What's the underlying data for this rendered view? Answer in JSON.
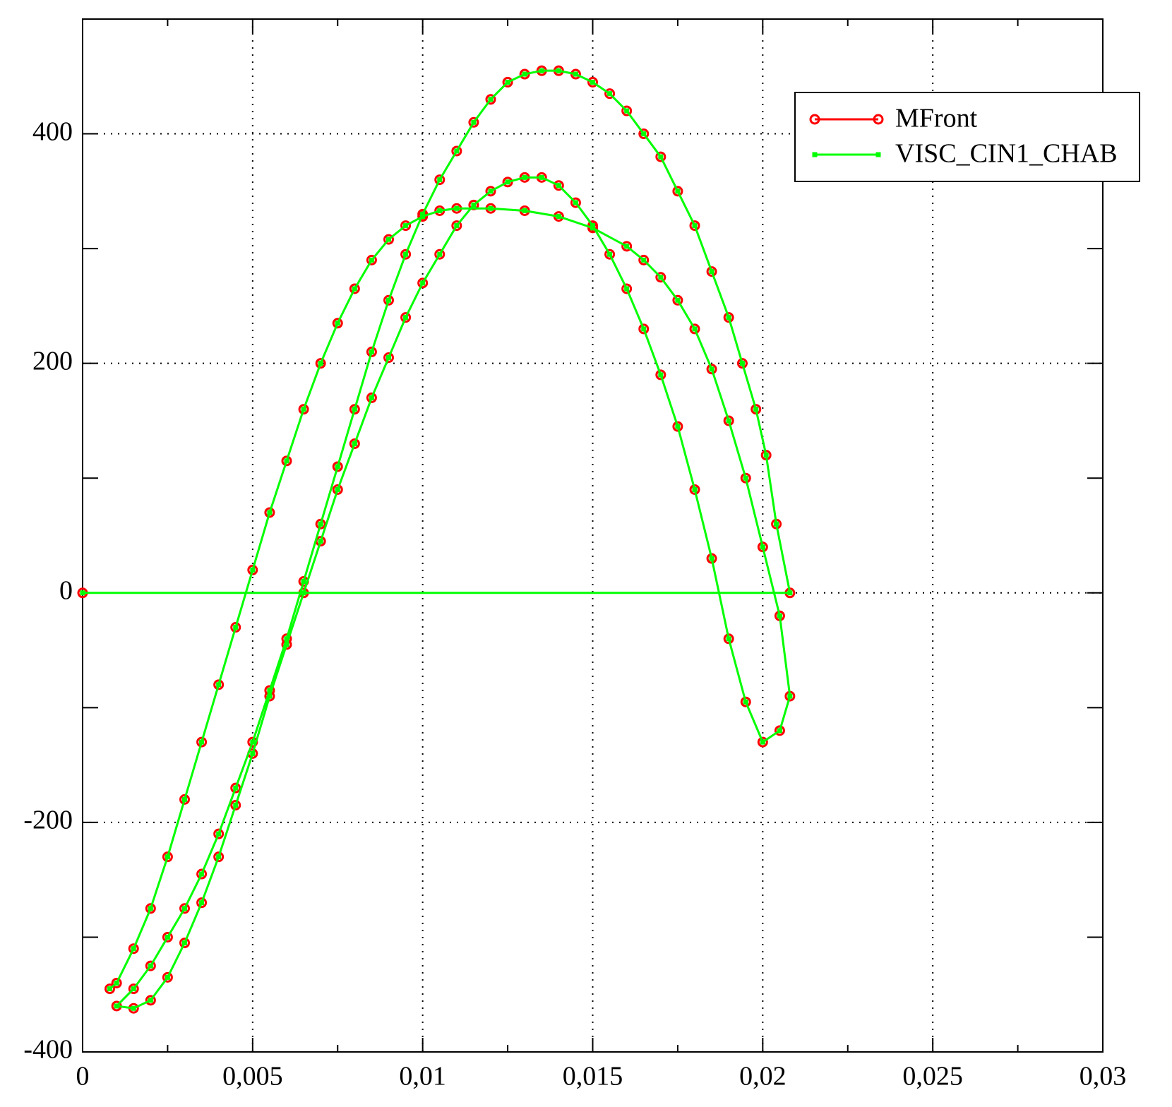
{
  "chart_data": {
    "type": "line",
    "xlim": [
      0,
      0.03
    ],
    "xticks": [
      0,
      {
        "value": 0.005,
        "label": "0,005"
      },
      {
        "value": 0.01,
        "label": "0,01"
      },
      {
        "value": 0.015,
        "label": "0,015"
      },
      {
        "value": 0.02,
        "label": "0,02"
      },
      {
        "value": 0.025,
        "label": "0,025"
      },
      {
        "value": 0.03,
        "label": "0,03"
      }
    ],
    "x_minor_ticks": [
      0.0025,
      0.0075,
      0.0125,
      0.0175,
      0.0225,
      0.0275
    ],
    "ylim": [
      -400,
      500
    ],
    "yticks": [
      -400,
      -200,
      0,
      200,
      400
    ],
    "y_minor_ticks": [
      -300,
      -100,
      100,
      300
    ],
    "grid": true,
    "legend": "upper right",
    "x": [
      0,
      0.0208,
      0.0204,
      0.0201,
      0.0198,
      0.0194,
      0.019,
      0.0185,
      0.018,
      0.0175,
      0.017,
      0.0165,
      0.016,
      0.0155,
      0.015,
      0.0145,
      0.014,
      0.0135,
      0.013,
      0.0125,
      0.012,
      0.0115,
      0.011,
      0.0105,
      0.01,
      0.0095,
      0.009,
      0.0085,
      0.008,
      0.0075,
      0.007,
      0.0065,
      0.006,
      0.0055,
      0.005,
      0.0045,
      0.004,
      0.0035,
      0.003,
      0.0025,
      0.002,
      0.0015,
      0.001,
      0.0015,
      0.002,
      0.0025,
      0.003,
      0.0035,
      0.004,
      0.0045,
      0.005,
      0.0055,
      0.006,
      0.0065,
      0.007,
      0.0075,
      0.008,
      0.0085,
      0.009,
      0.0095,
      0.01,
      0.0105,
      0.011,
      0.0115,
      0.012,
      0.0125,
      0.013,
      0.0135,
      0.014,
      0.0145,
      0.015,
      0.0155,
      0.016,
      0.0165,
      0.017,
      0.0175,
      0.018,
      0.0185,
      0.019,
      0.0195,
      0.02,
      0.0205,
      0.0208,
      0.0205,
      0.02,
      0.0195,
      0.019,
      0.0185,
      0.018,
      0.0175,
      0.017,
      0.0165,
      0.016,
      0.015,
      0.014,
      0.013,
      0.012,
      0.011,
      0.0105,
      0.01,
      0.0095,
      0.009,
      0.0085,
      0.008,
      0.0075,
      0.007,
      0.0065,
      0.006,
      0.0055,
      0.005,
      0.0045,
      0.004,
      0.0035,
      0.003,
      0.0025,
      0.002,
      0.0015,
      0.001,
      0.0008
    ],
    "series": [
      {
        "name": "MFront",
        "color": "#ff0000",
        "marker": "circle",
        "values": [
          0,
          0,
          60,
          120,
          160,
          200,
          240,
          280,
          320,
          350,
          380,
          400,
          420,
          435,
          445,
          452,
          455,
          455,
          452,
          445,
          430,
          410,
          385,
          360,
          330,
          295,
          255,
          210,
          160,
          110,
          60,
          10,
          -40,
          -85,
          -130,
          -170,
          -210,
          -245,
          -275,
          -300,
          -325,
          -345,
          -360,
          -362,
          -355,
          -335,
          -305,
          -270,
          -230,
          -185,
          -140,
          -90,
          -45,
          0,
          45,
          90,
          130,
          170,
          205,
          240,
          270,
          295,
          320,
          338,
          350,
          358,
          362,
          362,
          355,
          340,
          320,
          295,
          265,
          230,
          190,
          145,
          90,
          30,
          -40,
          -95,
          -130,
          -120,
          -90,
          -20,
          40,
          100,
          150,
          195,
          230,
          255,
          275,
          290,
          302,
          318,
          328,
          333,
          335,
          335,
          333,
          328,
          320,
          308,
          290,
          265,
          235,
          200,
          160,
          115,
          70,
          20,
          -30,
          -80,
          -130,
          -180,
          -230,
          -275,
          -310,
          -340,
          -345
        ]
      },
      {
        "name": "VISC_CIN1_CHAB",
        "color": "#00ff00",
        "marker": "square",
        "values": [
          0,
          0,
          60,
          120,
          160,
          200,
          240,
          280,
          320,
          350,
          380,
          400,
          420,
          435,
          445,
          452,
          455,
          455,
          452,
          445,
          430,
          410,
          385,
          360,
          330,
          295,
          255,
          210,
          160,
          110,
          60,
          10,
          -40,
          -85,
          -130,
          -170,
          -210,
          -245,
          -275,
          -300,
          -325,
          -345,
          -360,
          -362,
          -355,
          -335,
          -305,
          -270,
          -230,
          -185,
          -140,
          -90,
          -45,
          0,
          45,
          90,
          130,
          170,
          205,
          240,
          270,
          295,
          320,
          338,
          350,
          358,
          362,
          362,
          355,
          340,
          320,
          295,
          265,
          230,
          190,
          145,
          90,
          30,
          -40,
          -95,
          -130,
          -120,
          -90,
          -20,
          40,
          100,
          150,
          195,
          230,
          255,
          275,
          290,
          302,
          318,
          328,
          333,
          335,
          335,
          333,
          328,
          320,
          308,
          290,
          265,
          235,
          200,
          160,
          115,
          70,
          20,
          -30,
          -80,
          -130,
          -180,
          -230,
          -275,
          -310,
          -340,
          -345
        ]
      }
    ]
  }
}
